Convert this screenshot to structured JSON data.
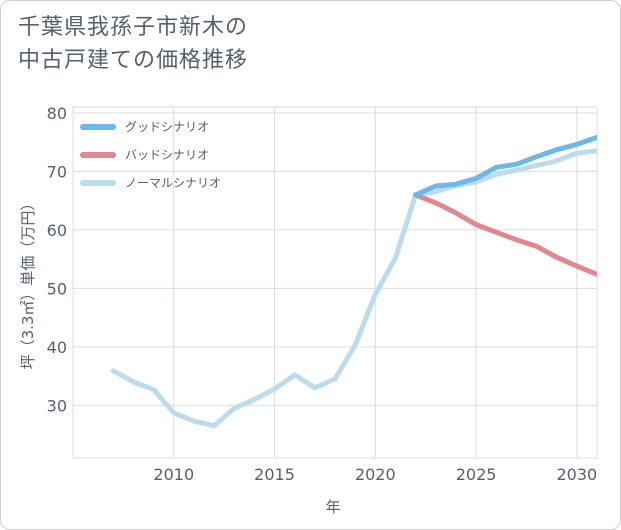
{
  "title": {
    "line1": "千葉県我孫子市新木の",
    "line2": "中古戸建ての価格推移"
  },
  "chart_data": {
    "type": "line",
    "xlabel": "年",
    "ylabel": "坪（3.3㎡）単価（万円）",
    "xlim": [
      2005,
      2031
    ],
    "ylim": [
      21,
      81
    ],
    "xticks": [
      2010,
      2015,
      2020,
      2025,
      2030
    ],
    "yticks": [
      30,
      40,
      50,
      60,
      70,
      80
    ],
    "grid": true,
    "legend_position": "top-left",
    "series": [
      {
        "name": "グッドシナリオ",
        "color": "#6bb8ea",
        "x": [
          2022,
          2023,
          2024,
          2025,
          2026,
          2027,
          2028,
          2029,
          2030,
          2031
        ],
        "y": [
          66.0,
          67.5,
          67.8,
          68.8,
          70.7,
          71.2,
          72.5,
          73.7,
          74.6,
          75.8
        ]
      },
      {
        "name": "バッドシナリオ",
        "color": "#e0878f",
        "x": [
          2022,
          2023,
          2024,
          2025,
          2026,
          2027,
          2028,
          2029,
          2030,
          2031
        ],
        "y": [
          66.0,
          64.6,
          62.9,
          60.9,
          59.6,
          58.3,
          57.2,
          55.3,
          53.8,
          52.4
        ]
      },
      {
        "name": "ノーマルシナリオ",
        "color": "#bcdcee",
        "x": [
          2007,
          2008,
          2009,
          2010,
          2011,
          2012,
          2013,
          2014,
          2015,
          2016,
          2017,
          2018,
          2019,
          2020,
          2021,
          2022,
          2023,
          2024,
          2025,
          2026,
          2027,
          2028,
          2029,
          2030,
          2031
        ],
        "y": [
          35.9,
          34.0,
          32.7,
          28.7,
          27.3,
          26.5,
          29.5,
          31.0,
          32.8,
          35.2,
          33.0,
          34.5,
          40.3,
          49.0,
          55.2,
          66.0,
          66.5,
          67.6,
          68.2,
          69.5,
          70.2,
          71.0,
          71.8,
          73.1,
          73.5
        ]
      }
    ]
  }
}
